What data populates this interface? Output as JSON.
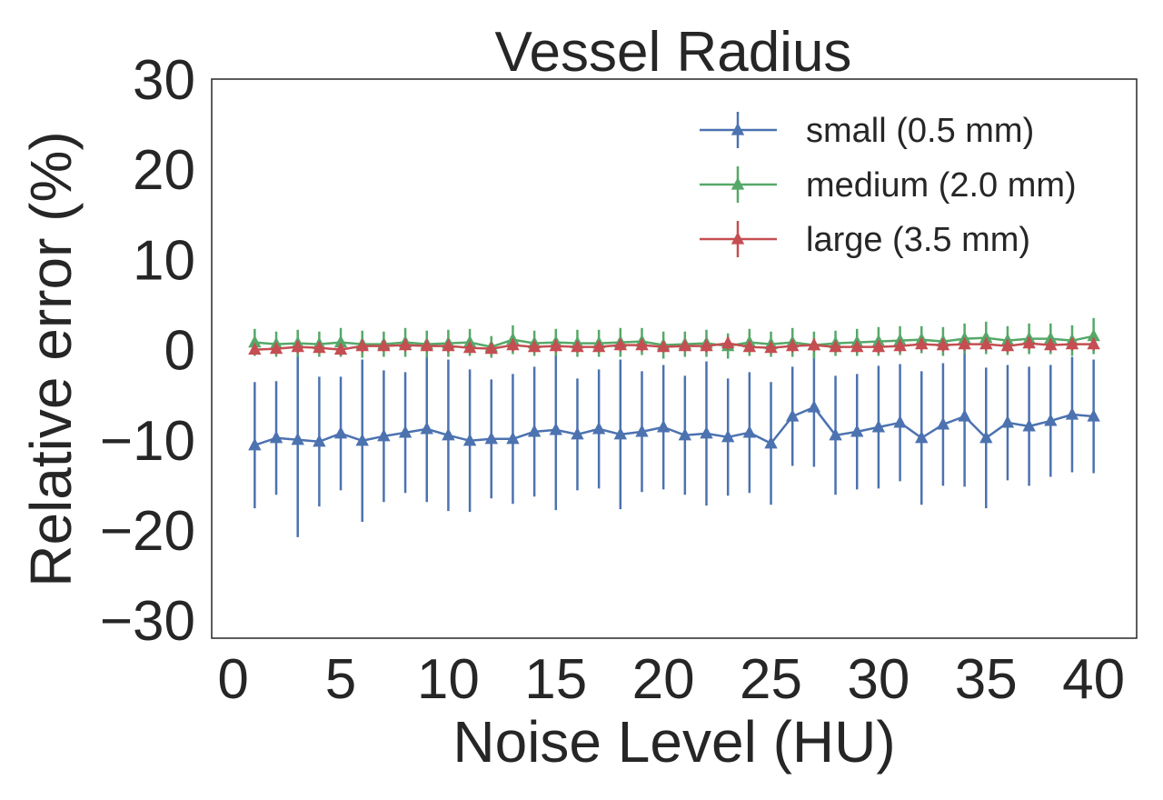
{
  "chart_data": {
    "type": "line",
    "title": "Vessel Radius",
    "xlabel": "Noise Level (HU)",
    "ylabel": "Relative error (%)",
    "xlim": [
      -1,
      42
    ],
    "ylim": [
      -32,
      30
    ],
    "xticks": [
      0,
      5,
      10,
      15,
      20,
      25,
      30,
      35,
      40
    ],
    "yticks": [
      30,
      20,
      10,
      0,
      -10,
      -20,
      -30
    ],
    "xtick_labels": [
      "0",
      "5",
      "10",
      "15",
      "20",
      "25",
      "30",
      "35",
      "40"
    ],
    "ytick_labels": [
      "30",
      "20",
      "10",
      "0",
      "−10",
      "−20",
      "−30"
    ],
    "grid": false,
    "legend_position": "top-right",
    "marker": "triangle",
    "x": [
      1,
      2,
      3,
      4,
      5,
      6,
      7,
      8,
      9,
      10,
      11,
      12,
      13,
      14,
      15,
      16,
      17,
      18,
      19,
      20,
      21,
      22,
      23,
      24,
      25,
      26,
      27,
      28,
      29,
      30,
      31,
      32,
      33,
      34,
      35,
      36,
      37,
      38,
      39,
      40
    ],
    "series": [
      {
        "name": "small (0.5 mm)",
        "color": "#4c72b0",
        "values": [
          -10.6,
          -9.8,
          -10.0,
          -10.2,
          -9.3,
          -10.1,
          -9.6,
          -9.2,
          -8.8,
          -9.5,
          -10.1,
          -9.9,
          -9.9,
          -9.1,
          -8.9,
          -9.4,
          -8.8,
          -9.4,
          -9.1,
          -8.6,
          -9.5,
          -9.3,
          -9.7,
          -9.2,
          -10.4,
          -7.4,
          -6.4,
          -9.5,
          -9.1,
          -8.6,
          -8.1,
          -9.8,
          -8.3,
          -7.4,
          -9.8,
          -8.1,
          -8.5,
          -7.9,
          -7.2,
          -7.4
        ],
        "errors": [
          7.0,
          6.3,
          10.8,
          7.2,
          6.3,
          9.0,
          7.3,
          6.7,
          8.1,
          8.4,
          7.9,
          6.6,
          7.2,
          7.2,
          8.9,
          6.2,
          6.6,
          8.3,
          6.7,
          6.9,
          6.6,
          8.0,
          6.5,
          6.7,
          6.8,
          5.5,
          6.6,
          6.6,
          6.4,
          6.8,
          6.5,
          7.4,
          6.8,
          7.8,
          7.8,
          6.4,
          6.6,
          6.2,
          6.4,
          6.3
        ]
      },
      {
        "name": "medium (2.0 mm)",
        "color": "#55a868",
        "values": [
          0.8,
          0.6,
          0.7,
          0.6,
          0.8,
          0.6,
          0.6,
          0.8,
          0.6,
          0.7,
          0.8,
          0.3,
          1.1,
          0.7,
          0.8,
          0.7,
          0.7,
          0.8,
          0.9,
          0.5,
          0.6,
          0.7,
          0.4,
          0.8,
          0.6,
          0.8,
          0.5,
          0.7,
          0.8,
          0.9,
          1.0,
          1.1,
          0.9,
          1.2,
          1.3,
          1.0,
          1.2,
          1.2,
          1.0,
          1.5
        ],
        "errors": [
          1.5,
          1.4,
          1.5,
          1.4,
          1.6,
          1.5,
          1.4,
          1.6,
          1.5,
          1.5,
          1.5,
          1.2,
          1.6,
          1.4,
          1.5,
          1.5,
          1.5,
          1.6,
          1.5,
          1.5,
          1.4,
          1.5,
          1.4,
          1.5,
          1.4,
          1.6,
          1.5,
          1.4,
          1.5,
          1.6,
          1.6,
          1.5,
          1.6,
          1.7,
          1.8,
          1.6,
          1.7,
          1.7,
          1.7,
          2.0
        ]
      },
      {
        "name": "large (3.5 mm)",
        "color": "#c44e52",
        "values": [
          0.0,
          0.1,
          0.3,
          0.2,
          0.0,
          0.4,
          0.4,
          0.5,
          0.4,
          0.4,
          0.2,
          0.1,
          0.5,
          0.3,
          0.4,
          0.3,
          0.3,
          0.5,
          0.5,
          0.3,
          0.4,
          0.4,
          0.7,
          0.3,
          0.2,
          0.4,
          0.5,
          0.3,
          0.3,
          0.3,
          0.4,
          0.6,
          0.5,
          0.6,
          0.6,
          0.4,
          0.7,
          0.5,
          0.6,
          0.6
        ],
        "errors": [
          0.6,
          0.6,
          0.7,
          0.6,
          0.6,
          0.7,
          0.6,
          0.7,
          0.6,
          0.7,
          0.6,
          0.6,
          0.7,
          0.6,
          0.7,
          0.6,
          0.6,
          0.7,
          0.7,
          0.6,
          0.6,
          0.7,
          0.7,
          0.6,
          0.6,
          0.7,
          0.7,
          0.6,
          0.6,
          0.7,
          0.7,
          0.7,
          0.7,
          0.7,
          0.7,
          0.7,
          0.7,
          0.7,
          0.7,
          0.7
        ]
      }
    ]
  }
}
